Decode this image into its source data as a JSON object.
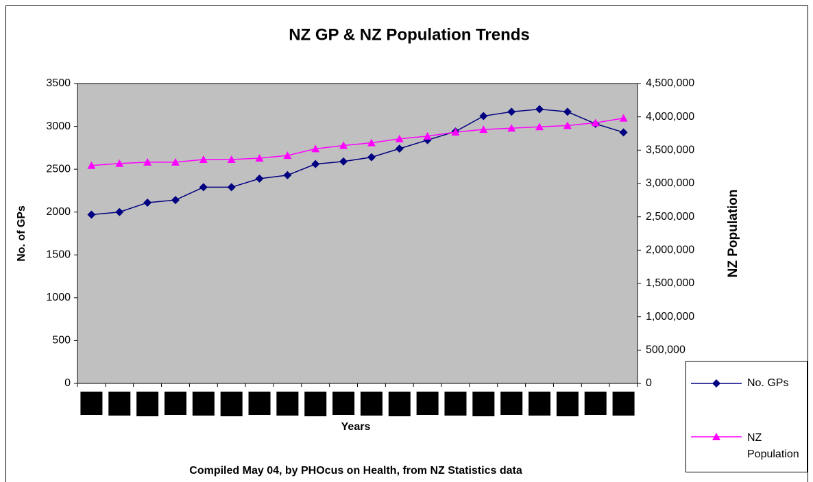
{
  "chart_data": {
    "type": "line",
    "title": "NZ GP & NZ Population Trends",
    "x_label": "Years",
    "y_label": "No. of GPs",
    "y2_label": "NZ Population",
    "note": "Compiled May 04, by PHOcus on Health, from NZ Statistics data",
    "categories": [
      null,
      null,
      null,
      null,
      null,
      null,
      null,
      null,
      null,
      null,
      null,
      null,
      null,
      null,
      null,
      null,
      null,
      null,
      null,
      null
    ],
    "series": [
      {
        "name": "No. GPs",
        "color": "#000080",
        "marker": "diamond",
        "values": [
          1970,
          2000,
          2110,
          2140,
          2290,
          2290,
          2390,
          2430,
          2560,
          2590,
          2640,
          2740,
          2840,
          2940,
          3120,
          3170,
          3200,
          3170,
          3030,
          2930
        ]
      },
      {
        "name": "NZ Population",
        "color": "#ff00ff",
        "marker": "triangle",
        "axis": "y2",
        "values": [
          3270000,
          3300000,
          3320000,
          3320000,
          3360000,
          3360000,
          3380000,
          3420000,
          3520000,
          3570000,
          3610000,
          3670000,
          3710000,
          3770000,
          3810000,
          3830000,
          3850000,
          3870000,
          3910000,
          3980000
        ]
      }
    ],
    "ylim": [
      0,
      3500
    ],
    "yticks": [
      0,
      500,
      1000,
      1500,
      2000,
      2500,
      3000,
      3500
    ],
    "y2lim": [
      0,
      4500000
    ],
    "y2ticks": [
      0,
      {
        "value": 500000,
        "label": "500,000"
      },
      {
        "value": 1000000,
        "label": "1,000,000"
      },
      {
        "value": 1500000,
        "label": "1,500,000"
      },
      {
        "value": 2000000,
        "label": "2,000,000"
      },
      {
        "value": 2500000,
        "label": "2,500,000"
      },
      {
        "value": 3000000,
        "label": "3,000,000"
      },
      {
        "value": 3500000,
        "label": "3,500,000"
      },
      {
        "value": 4000000,
        "label": "4,000,000"
      },
      {
        "value": 4500000,
        "label": "4,500,000"
      }
    ],
    "grid": false,
    "plot_background": "#c0c0c0",
    "legend": "right"
  }
}
